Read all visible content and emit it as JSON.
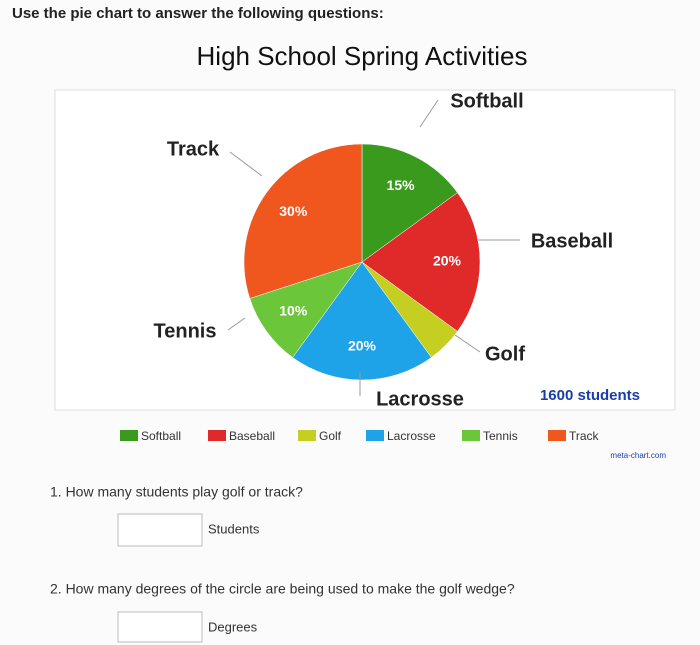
{
  "instruction": "Use the pie chart to answer the following questions:",
  "chart_data": {
    "type": "pie",
    "title": "High School Spring Activities",
    "categories": [
      "Softball",
      "Baseball",
      "Golf",
      "Lacrosse",
      "Tennis",
      "Track"
    ],
    "values": [
      15,
      20,
      5,
      20,
      10,
      30
    ],
    "value_labels": [
      "15%",
      "20%",
      null,
      "20%",
      "10%",
      "30%"
    ],
    "colors": [
      "#3a9a1e",
      "#e02a2a",
      "#c5cf22",
      "#1fa3e8",
      "#6cc63a",
      "#f0571e"
    ],
    "annotation": "1600 students",
    "credit": "meta-chart.com"
  },
  "questions": [
    {
      "text": "1. How many students play golf or track?",
      "unit": "Students"
    },
    {
      "text": "2. How many degrees of the circle are being used to make the golf wedge?",
      "unit": "Degrees"
    }
  ]
}
